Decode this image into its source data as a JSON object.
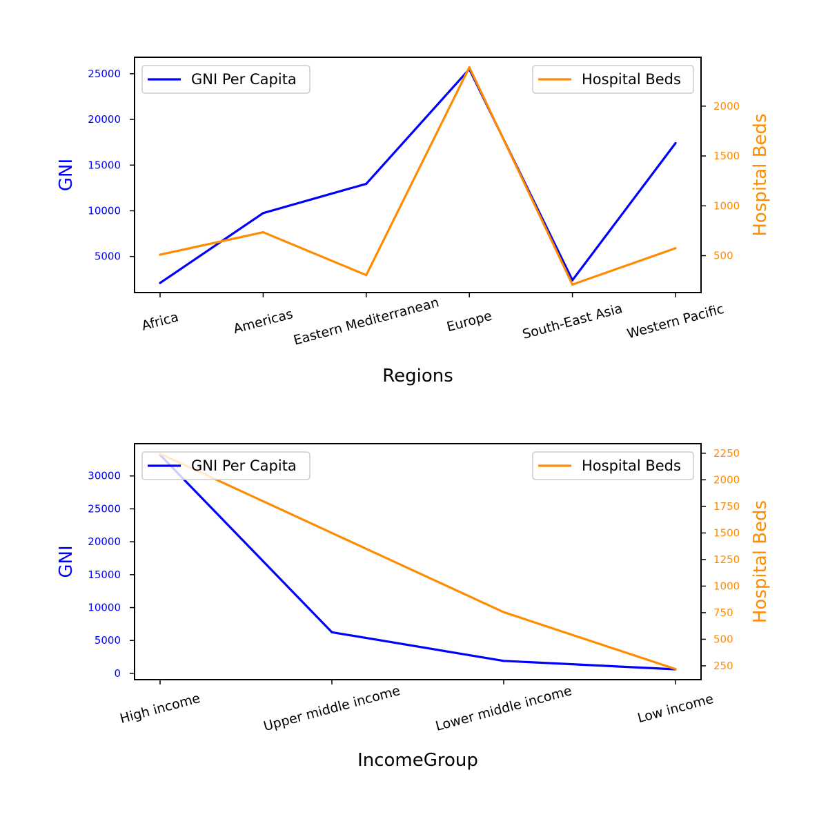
{
  "colors": {
    "gni": "#0000ff",
    "beds": "#ff8c00",
    "text": "#000000",
    "axes": "#000000"
  },
  "chart_data": [
    {
      "type": "line",
      "xlabel": "Regions",
      "ylabel": "GNI",
      "y2label": "Hospital Beds",
      "categories": [
        "Africa",
        "Americas",
        "Eastern Mediterranean",
        "Europe",
        "South-East Asia",
        "Western Pacific"
      ],
      "series": [
        {
          "name": "GNI Per Capita",
          "axis": "left",
          "color": "#0000ff",
          "values": [
            2100,
            9750,
            12950,
            25500,
            2400,
            17400
          ]
        },
        {
          "name": "Hospital Beds",
          "axis": "right",
          "color": "#ff8c00",
          "values": [
            510,
            735,
            305,
            2390,
            210,
            575
          ]
        }
      ],
      "ylim": [
        1050,
        26800
      ],
      "y2lim": [
        130,
        2490
      ],
      "yticks": [
        5000,
        10000,
        15000,
        20000,
        25000
      ],
      "y2ticks": [
        500,
        1000,
        1500,
        2000
      ],
      "legend_left": "upper left",
      "legend_right": "upper right",
      "grid": false
    },
    {
      "type": "line",
      "xlabel": "IncomeGroup",
      "ylabel": "GNI",
      "y2label": "Hospital Beds",
      "categories": [
        "High income",
        "Upper middle income",
        "Lower middle income",
        "Low income"
      ],
      "series": [
        {
          "name": "GNI Per Capita",
          "axis": "left",
          "color": "#0000ff",
          "values": [
            33200,
            6250,
            1900,
            620
          ]
        },
        {
          "name": "Hospital Beds",
          "axis": "right",
          "color": "#ff8c00",
          "values": [
            2245,
            1500,
            755,
            220
          ]
        }
      ],
      "ylim": [
        -950,
        34900
      ],
      "y2lim": [
        120,
        2340
      ],
      "yticks": [
        0,
        5000,
        10000,
        15000,
        20000,
        25000,
        30000
      ],
      "y2ticks": [
        250,
        500,
        750,
        1000,
        1250,
        1500,
        1750,
        2000,
        2250
      ],
      "legend_left": "upper left",
      "legend_right": "upper right",
      "grid": false
    }
  ]
}
